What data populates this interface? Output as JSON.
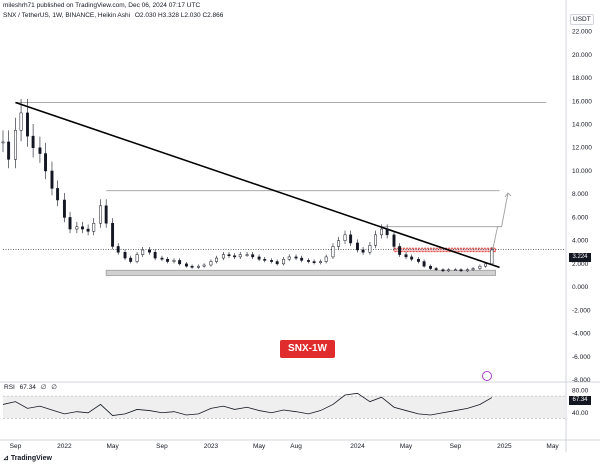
{
  "header": {
    "text": "mileshrh71 published on TradingView.com, Dec 06, 2024 07:17 UTC"
  },
  "symbol": {
    "pair": "SNX / TetherUS, 1W, BINANCE, Heikin Ashi",
    "ohlc": "O2.030 H3.328 L2.030 C2.866"
  },
  "badge": {
    "text": "SNX-1W"
  },
  "currency": {
    "text": "USDT"
  },
  "price_tag": {
    "text": "3.224"
  },
  "rsi_tag": {
    "text": "67.34"
  },
  "rsi_label": {
    "name": "RSI",
    "value": "67.34",
    "extra1": "∅",
    "extra2": "∅"
  },
  "watermark": {
    "text": "TradingView"
  },
  "icons": {
    "flag": "lightning-circle-icon",
    "logo": "tradingview-logo-icon"
  },
  "colors": {
    "candle": "#131722",
    "trendline": "#000000",
    "support_box": "#9e9e9e",
    "resistance_box": "#e02c2c",
    "arrow": "#9e9e9e",
    "rsi_line": "#131722",
    "rsi_band": "#e0e0e0",
    "badge": "#e02c2c"
  },
  "chart_data": [
    {
      "type": "line",
      "title": "",
      "xlabel": "",
      "ylabel": "",
      "ylim": [
        -8,
        23
      ],
      "yticks": [
        22,
        20,
        18,
        16,
        14,
        12,
        10,
        8,
        6,
        4,
        2,
        0,
        -2,
        -4,
        -6,
        -8
      ],
      "ytick_labels": [
        "22.000",
        "20.000",
        "18.000",
        "16.000",
        "14.000",
        "12.000",
        "10.000",
        "8.000",
        "6.000",
        "4.000",
        "2.000",
        "0.000",
        "-2.000",
        "-4.000",
        "-6.000",
        "-8.000"
      ],
      "x_tick_labels": [
        "Sep",
        "2022",
        "May",
        "Sep",
        "2023",
        "May",
        "Aug",
        "2024",
        "May",
        "Sep",
        "2025",
        "May"
      ],
      "x_tick_dates": [
        "2021-09-01",
        "2022-01-01",
        "2022-05-01",
        "2022-09-01",
        "2023-01-01",
        "2023-05-01",
        "2023-08-01",
        "2024-01-01",
        "2024-05-01",
        "2024-09-01",
        "2025-01-01",
        "2025-05-01"
      ],
      "xlim": [
        "2021-08-01",
        "2025-06-01"
      ],
      "series": [
        {
          "x": [
            "2021-08-01",
            "2021-08-15",
            "2021-09-01",
            "2021-09-15",
            "2021-10-01",
            "2021-10-15",
            "2021-11-01",
            "2021-11-15",
            "2021-12-01",
            "2021-12-15",
            "2022-01-01",
            "2022-01-15",
            "2022-02-01",
            "2022-02-15",
            "2022-03-01",
            "2022-03-15",
            "2022-04-01",
            "2022-04-15",
            "2022-05-01",
            "2022-05-15",
            "2022-06-01",
            "2022-06-15",
            "2022-07-01",
            "2022-07-15",
            "2022-08-01",
            "2022-08-15",
            "2022-09-01",
            "2022-09-15",
            "2022-10-01",
            "2022-10-15",
            "2022-11-01",
            "2022-11-15",
            "2022-12-01",
            "2022-12-15",
            "2023-01-01",
            "2023-01-15",
            "2023-02-01",
            "2023-02-15",
            "2023-03-01",
            "2023-03-15",
            "2023-04-01",
            "2023-04-15",
            "2023-05-01",
            "2023-05-15",
            "2023-06-01",
            "2023-06-15",
            "2023-07-01",
            "2023-07-15",
            "2023-08-01",
            "2023-08-15",
            "2023-09-01",
            "2023-09-15",
            "2023-10-01",
            "2023-10-15",
            "2023-11-01",
            "2023-11-15",
            "2023-12-01",
            "2023-12-15",
            "2024-01-01",
            "2024-01-15",
            "2024-02-01",
            "2024-02-15",
            "2024-03-01",
            "2024-03-15",
            "2024-04-01",
            "2024-04-15",
            "2024-05-01",
            "2024-05-15",
            "2024-06-01",
            "2024-06-15",
            "2024-07-01",
            "2024-07-15",
            "2024-08-01",
            "2024-08-15",
            "2024-09-01",
            "2024-09-15",
            "2024-10-01",
            "2024-10-15",
            "2024-11-01",
            "2024-11-15",
            "2024-12-01"
          ],
          "values": [
            12.5,
            11.0,
            13.5,
            15.0,
            13.0,
            12.0,
            11.5,
            10.0,
            8.5,
            7.5,
            6.0,
            5.0,
            5.2,
            5.0,
            4.8,
            5.5,
            7.0,
            5.5,
            3.5,
            3.0,
            2.5,
            2.2,
            2.8,
            3.2,
            3.0,
            2.5,
            2.4,
            2.2,
            2.3,
            2.0,
            1.8,
            1.7,
            1.8,
            1.9,
            2.2,
            2.5,
            2.8,
            2.7,
            2.6,
            2.8,
            2.8,
            2.6,
            2.4,
            2.3,
            2.2,
            2.0,
            2.4,
            2.6,
            2.5,
            2.3,
            2.2,
            2.1,
            2.2,
            2.6,
            3.5,
            4.0,
            4.5,
            3.8,
            3.2,
            3.0,
            3.6,
            4.5,
            5.0,
            4.5,
            3.5,
            2.8,
            2.6,
            2.4,
            2.2,
            1.8,
            1.6,
            1.5,
            1.4,
            1.5,
            1.5,
            1.4,
            1.5,
            1.6,
            1.8,
            2.0,
            3.2
          ]
        }
      ],
      "annotations": {
        "trendline": {
          "from": [
            "2021-09-01",
            15.9
          ],
          "to": [
            "2024-12-20",
            1.7
          ]
        },
        "hlines": [
          {
            "y": 15.9,
            "from": "2021-09-01",
            "to": "2025-04-15"
          },
          {
            "y": 8.3,
            "from": "2022-04-15",
            "to": "2024-12-20"
          },
          {
            "y": 5.2,
            "from": "2024-03-01",
            "to": "2024-12-20"
          }
        ],
        "support_box": {
          "y0": 1.0,
          "y1": 1.45,
          "from": "2022-04-15",
          "to": "2024-12-10"
        },
        "resistance_box": {
          "y0": 3.05,
          "y1": 3.35,
          "from": "2024-04-01",
          "to": "2024-12-10"
        },
        "last_price_line": 3.224,
        "arrow_path": [
          [
            "2024-12-01",
            2.9
          ],
          [
            "2024-12-15",
            5.2
          ],
          [
            "2024-12-25",
            5.2
          ],
          [
            "2025-01-10",
            8.1
          ]
        ]
      }
    },
    {
      "type": "line",
      "title": "",
      "ylim": [
        0,
        90
      ],
      "yticks": [
        80,
        60,
        40
      ],
      "ytick_labels": [
        "80.00",
        "60.00",
        "40.00"
      ],
      "band": [
        30,
        70
      ],
      "xlim": [
        "2021-08-01",
        "2025-06-01"
      ],
      "series": [
        {
          "name": "RSI",
          "x": [
            "2021-08-01",
            "2021-09-01",
            "2021-10-01",
            "2021-11-01",
            "2021-12-01",
            "2022-01-01",
            "2022-02-01",
            "2022-03-01",
            "2022-04-01",
            "2022-05-01",
            "2022-06-01",
            "2022-07-01",
            "2022-08-01",
            "2022-09-01",
            "2022-10-01",
            "2022-11-01",
            "2022-12-01",
            "2023-01-01",
            "2023-02-01",
            "2023-03-01",
            "2023-04-01",
            "2023-05-01",
            "2023-06-01",
            "2023-07-01",
            "2023-08-01",
            "2023-09-01",
            "2023-10-01",
            "2023-11-01",
            "2023-12-01",
            "2024-01-01",
            "2024-02-01",
            "2024-03-01",
            "2024-04-01",
            "2024-05-01",
            "2024-06-01",
            "2024-07-01",
            "2024-08-01",
            "2024-09-01",
            "2024-10-01",
            "2024-11-01",
            "2024-12-01"
          ],
          "values": [
            55,
            60,
            48,
            52,
            45,
            38,
            42,
            40,
            55,
            35,
            38,
            46,
            44,
            40,
            42,
            36,
            38,
            48,
            52,
            46,
            50,
            44,
            40,
            45,
            42,
            38,
            44,
            55,
            72,
            75,
            60,
            68,
            50,
            44,
            38,
            36,
            40,
            44,
            48,
            55,
            67.34
          ]
        }
      ]
    }
  ]
}
